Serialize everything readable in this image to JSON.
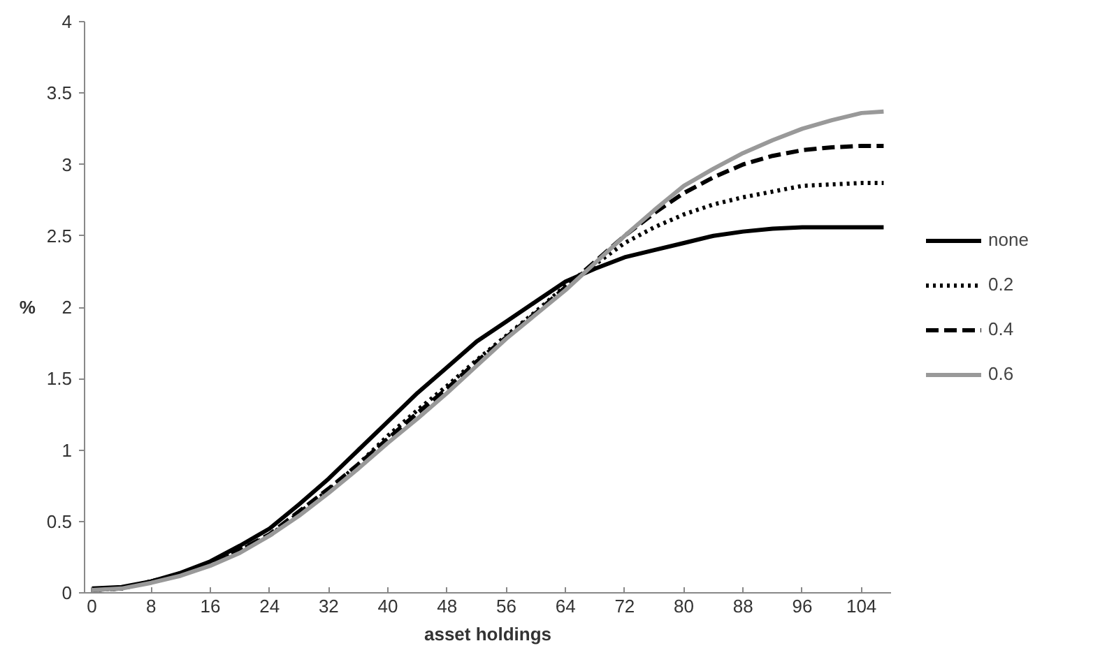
{
  "chart_data": {
    "type": "line",
    "xlabel": "asset holdings",
    "ylabel": "%",
    "x": [
      0,
      4,
      8,
      12,
      16,
      20,
      24,
      28,
      32,
      36,
      40,
      44,
      48,
      52,
      56,
      60,
      64,
      68,
      72,
      76,
      80,
      84,
      88,
      92,
      96,
      100,
      104,
      107
    ],
    "series": [
      {
        "name": "none",
        "color": "#000000",
        "line_style": "solid",
        "values": [
          0.03,
          0.04,
          0.08,
          0.14,
          0.22,
          0.33,
          0.45,
          0.62,
          0.8,
          1.0,
          1.2,
          1.4,
          1.58,
          1.76,
          1.9,
          2.04,
          2.18,
          2.27,
          2.35,
          2.4,
          2.45,
          2.5,
          2.53,
          2.55,
          2.56,
          2.56,
          2.56,
          2.56
        ]
      },
      {
        "name": "0.2",
        "color": "#000000",
        "line_style": "dotted",
        "values": [
          0.02,
          0.03,
          0.08,
          0.13,
          0.2,
          0.3,
          0.4,
          0.56,
          0.72,
          0.9,
          1.1,
          1.28,
          1.45,
          1.63,
          1.8,
          1.97,
          2.15,
          2.3,
          2.45,
          2.56,
          2.65,
          2.72,
          2.77,
          2.81,
          2.85,
          2.86,
          2.87,
          2.87
        ]
      },
      {
        "name": "0.4",
        "color": "#000000",
        "line_style": "dashed",
        "values": [
          0.02,
          0.03,
          0.08,
          0.13,
          0.2,
          0.3,
          0.41,
          0.57,
          0.73,
          0.9,
          1.08,
          1.26,
          1.43,
          1.62,
          1.79,
          1.96,
          2.14,
          2.32,
          2.5,
          2.66,
          2.8,
          2.91,
          3.0,
          3.06,
          3.1,
          3.12,
          3.13,
          3.13
        ]
      },
      {
        "name": "0.6",
        "color": "#999999",
        "line_style": "solid",
        "values": [
          0.02,
          0.03,
          0.07,
          0.12,
          0.19,
          0.28,
          0.4,
          0.54,
          0.7,
          0.87,
          1.05,
          1.22,
          1.4,
          1.59,
          1.78,
          1.95,
          2.12,
          2.31,
          2.5,
          2.68,
          2.85,
          2.97,
          3.08,
          3.17,
          3.25,
          3.31,
          3.36,
          3.37
        ]
      }
    ],
    "xlim": [
      -1,
      108
    ],
    "ylim": [
      0,
      4
    ],
    "xticks": [
      0,
      8,
      16,
      24,
      32,
      40,
      48,
      56,
      64,
      72,
      80,
      88,
      96,
      104
    ],
    "yticks": [
      0,
      0.5,
      1,
      1.5,
      2,
      2.5,
      3,
      3.5,
      4
    ],
    "grid": false,
    "legend": "right",
    "marker": "none"
  }
}
